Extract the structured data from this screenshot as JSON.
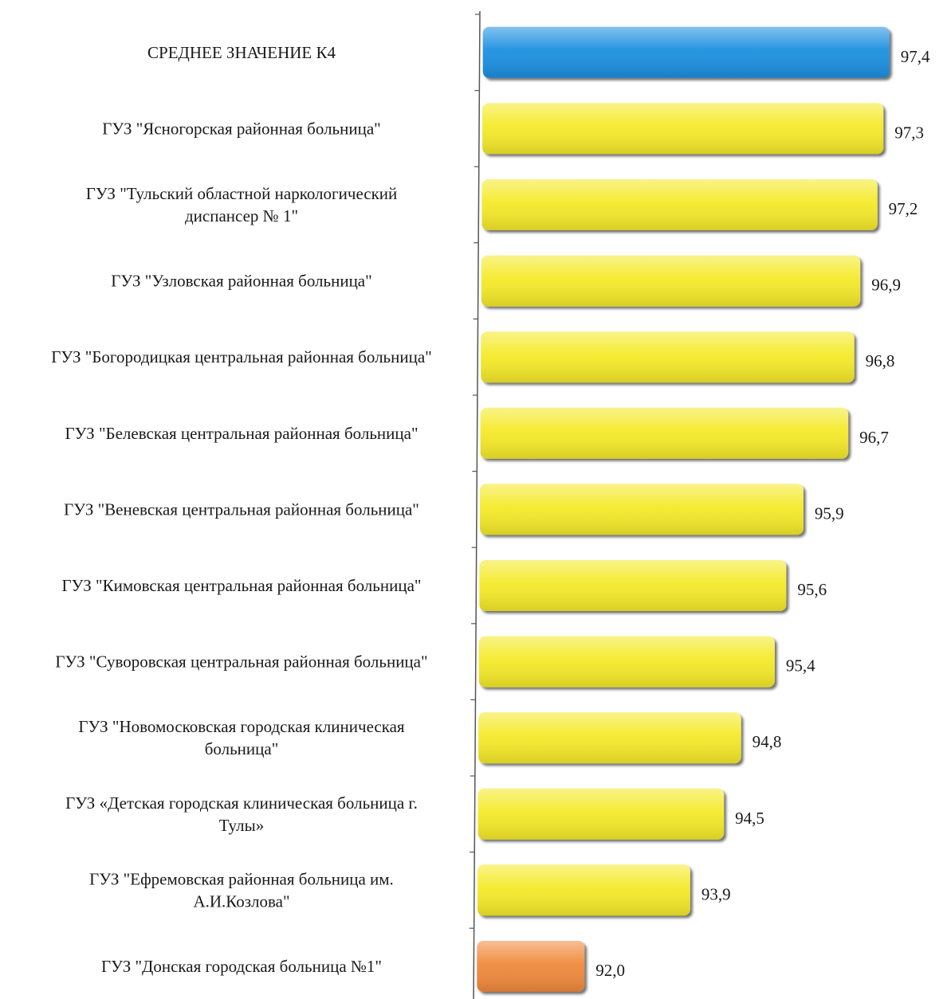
{
  "chart_data": {
    "type": "bar",
    "orientation": "horizontal",
    "categories": [
      [
        "СРЕДНЕЕ ЗНАЧЕНИЕ К4"
      ],
      [
        "ГУЗ \"Ясногорская районная больница\""
      ],
      [
        "ГУЗ \"Тульский областной наркологический",
        "диспансер № 1\""
      ],
      [
        "ГУЗ \"Узловская районная больница\""
      ],
      [
        "ГУЗ \"Богородицкая центральная районная больница\""
      ],
      [
        "ГУЗ \"Белевская центральная районная больница\""
      ],
      [
        "ГУЗ \"Веневская центральная районная больница\""
      ],
      [
        "ГУЗ \"Кимовская центральная районная больница\""
      ],
      [
        "ГУЗ \"Суворовская центральная районная больница\""
      ],
      [
        "ГУЗ \"Новомосковская городская клиническая",
        "больница\""
      ],
      [
        "ГУЗ «Детская городская клиническая больница г.",
        "Тулы»"
      ],
      [
        "ГУЗ \"Ефремовская районная больница им.",
        "А.И.Козлова\""
      ],
      [
        "ГУЗ \"Донская городская больница №1\""
      ]
    ],
    "values": [
      97.4,
      97.3,
      97.2,
      96.9,
      96.8,
      96.7,
      95.9,
      95.6,
      95.4,
      94.8,
      94.5,
      93.9,
      92.0
    ],
    "value_labels": [
      "97,4",
      "97,3",
      "97,2",
      "96,9",
      "96,8",
      "96,7",
      "95,9",
      "95,6",
      "95,4",
      "94,8",
      "94,5",
      "93,9",
      "92,0"
    ],
    "bar_colors": [
      "#1E90E0",
      "#F5EA2A",
      "#F5EA2A",
      "#F5EA2A",
      "#F5EA2A",
      "#F5EA2A",
      "#F5EA2A",
      "#F5EA2A",
      "#F5EA2A",
      "#F5EA2A",
      "#F5EA2A",
      "#F5EA2A",
      "#F08A3C"
    ],
    "xlim": [
      90.0,
      97.6
    ],
    "grid": false,
    "legend": "none"
  }
}
